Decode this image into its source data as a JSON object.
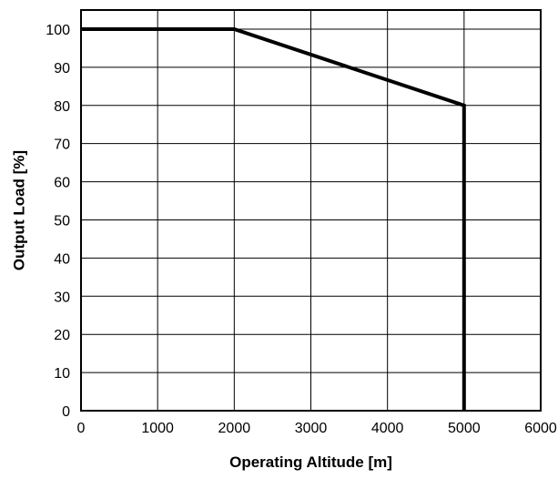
{
  "chart_data": {
    "type": "line",
    "title": "",
    "xlabel": "Operating Altitude [m]",
    "ylabel": "Output Load [%]",
    "xlim": [
      0,
      6000
    ],
    "ylim": [
      0,
      105
    ],
    "x_ticks": [
      0,
      1000,
      2000,
      3000,
      4000,
      5000,
      6000
    ],
    "y_ticks": [
      0,
      10,
      20,
      30,
      40,
      50,
      60,
      70,
      80,
      90,
      100
    ],
    "x_tick_labels": [
      "0",
      "1000",
      "2000",
      "3000",
      "4000",
      "5000",
      "6000"
    ],
    "y_tick_labels": [
      "0",
      "10",
      "20",
      "30",
      "40",
      "50",
      "60",
      "70",
      "80",
      "90",
      "100"
    ],
    "grid": true,
    "legend": "none",
    "series": [
      {
        "color": "#000000",
        "x": [
          0,
          2000,
          5000,
          5000
        ],
        "y": [
          100,
          100,
          80,
          0
        ]
      }
    ]
  }
}
